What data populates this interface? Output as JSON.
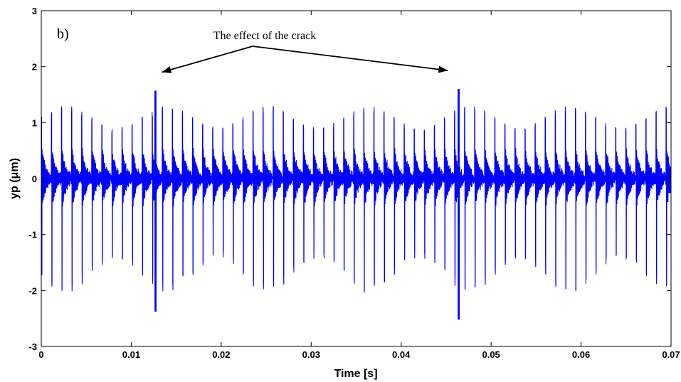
{
  "chart_data": {
    "type": "line",
    "panel_label": "b)",
    "xlabel": "Time [s]",
    "ylabel": "yp (μm)",
    "xlim": [
      0,
      0.07
    ],
    "ylim": [
      -3,
      3
    ],
    "x_ticks": [
      "0",
      "0.01",
      "0.02",
      "0.03",
      "0.04",
      "0.05",
      "0.06",
      "0.07"
    ],
    "y_ticks": [
      "3",
      "2",
      "1",
      "0",
      "-1",
      "-2",
      "-3"
    ],
    "grid": false,
    "legend": "none",
    "series": [
      {
        "color": "#0000ff",
        "signal": {
          "pulse_period_s": 0.00112,
          "typical_peak_max": 1.3,
          "typical_peak_min": -2.05,
          "oscillation_amplitude": 0.5
        }
      }
    ],
    "crack_events": [
      {
        "x": 0.0127,
        "y_max": 1.57,
        "y_min": -2.38
      },
      {
        "x": 0.0464,
        "y_max": 1.6,
        "y_min": -2.52
      }
    ],
    "annotation": {
      "text": "The effect of the crack",
      "arrow_targets": [
        {
          "x": 0.0134,
          "y": 1.57
        },
        {
          "x": 0.0452,
          "y": 1.6
        }
      ]
    }
  }
}
